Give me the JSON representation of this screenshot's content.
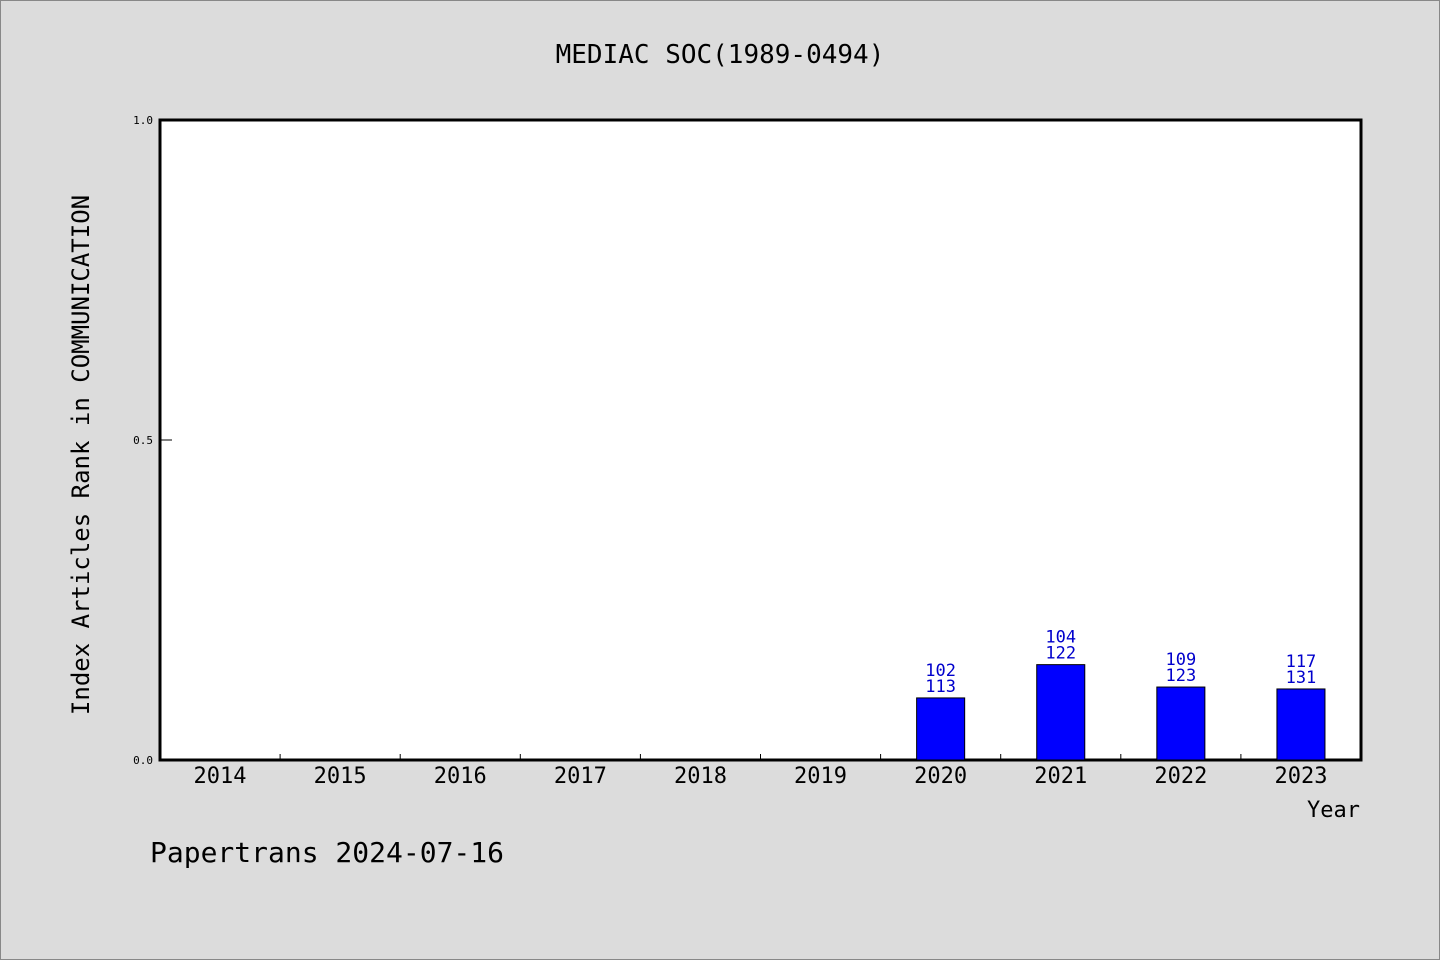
{
  "chart_data": {
    "type": "bar",
    "title": "MEDIAC SOC(1989-0494)",
    "xlabel": "Year",
    "ylabel": "Index Articles Rank in COMMUNICATION",
    "categories": [
      "2014",
      "2015",
      "2016",
      "2017",
      "2018",
      "2019",
      "2020",
      "2021",
      "2022",
      "2023"
    ],
    "series": [
      {
        "values": [
          null,
          null,
          null,
          null,
          null,
          null,
          0.097,
          0.149,
          0.114,
          0.111
        ],
        "rank_labels": [
          "",
          "",
          "",
          "",
          "",
          "",
          "102",
          "104",
          "109",
          "117"
        ],
        "total_labels": [
          "",
          "",
          "",
          "",
          "",
          "",
          "113",
          "122",
          "123",
          "131"
        ]
      }
    ],
    "ylim": [
      0,
      1.0
    ],
    "yticks": [
      "0.0",
      "0.5",
      "1.0"
    ],
    "grid": false,
    "bar_color": "#0000ff",
    "label_color": "#0000cc"
  },
  "footer": "Papertrans 2024-07-16"
}
